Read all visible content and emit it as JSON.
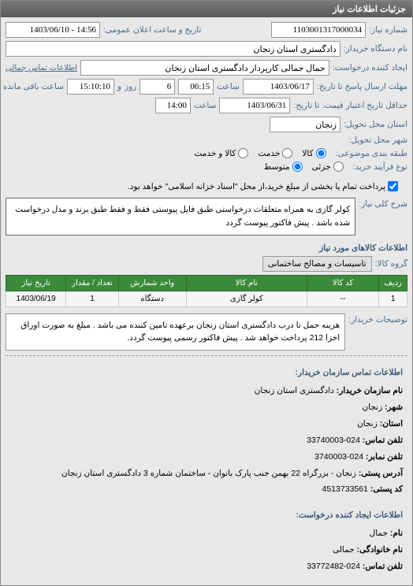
{
  "panel": {
    "title": "جزئیات اطلاعات نیاز"
  },
  "form": {
    "need_number_label": "شماره نیاز:",
    "need_number": "1103001317000034",
    "datetime_label": "تاریخ و ساعت اعلان عمومی:",
    "datetime": "14:56 - 1403/06/10",
    "buyer_org_label": "نام دستگاه خریدار:",
    "buyer_org": "دادگستری استان زنجان",
    "request_creator_label": "ایجاد کننده درخواست:",
    "request_creator": "جمال جمالی کارپرداز دادگستری استان زنجان",
    "contact_link": "اطلاعات تماس جمالی",
    "response_deadline_label": "مهلت ارسال پاسخ تا تاریخ:",
    "response_date": "1403/06/17",
    "saat_label": "ساعت",
    "response_time": "06:15",
    "va_label": "و",
    "rooz_label": "روز",
    "days_remaining": "6",
    "remain_time": "15:10:10",
    "remain_label": "ساعت باقی مانده",
    "price_validity_label": "حداقل تاریخ اعتبار قیمت: تا تاریخ:",
    "price_date": "1403/06/31",
    "price_time": "14:00",
    "province_label": "استان محل تحویل:",
    "province": "زنجان",
    "city_label": "شهر محل تحویل:",
    "need_type_label": "طبقه بندی موضوعی:",
    "need_type_options": {
      "kala": "کالا",
      "khadmat": "خدمت",
      "kala_khadmat": "کالا و خدمت"
    },
    "buy_process_label": "نوع فرآیند خرید:",
    "buy_process_options": {
      "low": "جزئی",
      "mid": "متوسط"
    },
    "payment_note": "پرداخت تمام یا بخشی از مبلغ خرید،از محل \"اسناد خزانه اسلامی\" خواهد بود.",
    "desc_label": "شرح کلی نیاز:",
    "desc_text": "کولر گازی به همراه متعلقات درخواستی طبق فایل پیوستی فقط و فقط طبق برند و مدل درخواست شده باشد . پیش فاکتور پیوست گردد",
    "items_header": "اطلاعات کالاهای مورد نیاز",
    "group_label": "گروه کالا:",
    "group_value": "تاسیسات و مصالح ساختمانی"
  },
  "table": {
    "columns": [
      "ردیف",
      "کد کالا",
      "نام کالا",
      "واحد شمارش",
      "تعداد / مقدار",
      "تاریخ نیاز"
    ],
    "rows": [
      [
        "1",
        "--",
        "کولر گازی",
        "دستگاه",
        "1",
        "1403/06/19"
      ]
    ],
    "col_widths": [
      "7%",
      "18%",
      "30%",
      "17%",
      "13%",
      "15%"
    ]
  },
  "buyer_note": {
    "label": "توضیحات خریدار:",
    "text": "هزینه حمل تا درب دادگستری استان زنجان برعهده تامین کننده می باشد . مبلغ به صورت اوراق اخزا 212 پرداخت خواهد شد . پیش فاکتور رسمی پیوست گردد."
  },
  "contact_org": {
    "header": "اطلاعات تماس سازمان خریدار:",
    "lines": [
      {
        "label": "نام سازمان خریدار:",
        "value": "دادگستری استان زنجان"
      },
      {
        "label": "شهر:",
        "value": "زنجان"
      },
      {
        "label": "استان:",
        "value": "زنجان"
      },
      {
        "label": "تلفن تماس:",
        "value": "024-33740003"
      },
      {
        "label": "تلفن نمابر:",
        "value": "024-3740003"
      },
      {
        "label": "آدرس پستی:",
        "value": "زنجان - بزرگراه 22 بهمن جنب پارک بانوان - ساختمان شماره 3 دادگستری استان زنجان"
      },
      {
        "label": "کد پستی:",
        "value": "4513733561"
      }
    ]
  },
  "contact_creator": {
    "header": "اطلاعات ایجاد کننده درخواست:",
    "lines": [
      {
        "label": "نام:",
        "value": "جمال"
      },
      {
        "label": "نام خانوادگی:",
        "value": "جمالی"
      },
      {
        "label": "تلفن تماس:",
        "value": "024-33772482"
      }
    ]
  },
  "colors": {
    "header_bg": "#6a6a6a",
    "form_bg": "#e8e8e8",
    "label": "#4a6a8a",
    "th_bg": "#3a8a3a",
    "yellow": "#ffe8a0"
  }
}
